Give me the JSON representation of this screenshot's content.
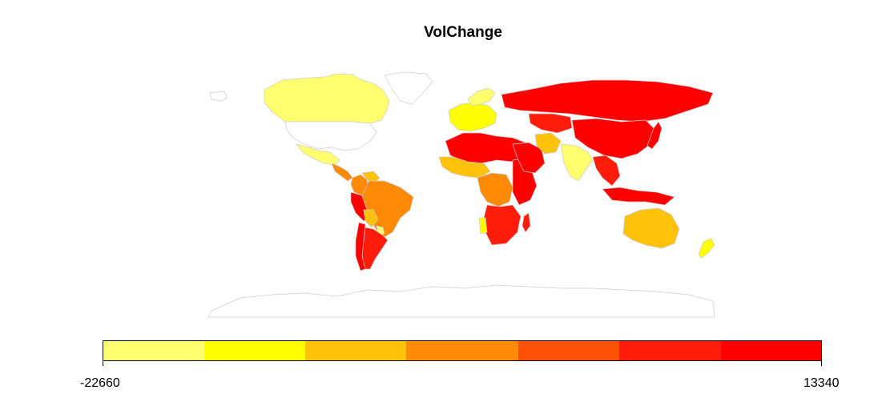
{
  "title": "VolChange",
  "legend": {
    "min_label": "-22660",
    "max_label": "13340",
    "colors": [
      "#FFFF70",
      "#FFFF00",
      "#FFC20A",
      "#FF8A05",
      "#FF5208",
      "#FF1C0A",
      "#FF0000"
    ]
  },
  "colors": {
    "no_data_fill": "#FFFFFF",
    "border": "#CCCCCC"
  },
  "regions": [
    {
      "name": "Alaska",
      "fill_level": -1
    },
    {
      "name": "Canada",
      "fill_level": 0
    },
    {
      "name": "Greenland",
      "fill_level": -1
    },
    {
      "name": "United States",
      "fill_level": -1
    },
    {
      "name": "Mexico",
      "fill_level": 0
    },
    {
      "name": "Central America",
      "fill_level": 3
    },
    {
      "name": "Colombia",
      "fill_level": 3
    },
    {
      "name": "Venezuela",
      "fill_level": 2
    },
    {
      "name": "Peru",
      "fill_level": 6
    },
    {
      "name": "Brazil",
      "fill_level": 3
    },
    {
      "name": "Bolivia",
      "fill_level": 2
    },
    {
      "name": "Paraguay",
      "fill_level": 0
    },
    {
      "name": "Argentina",
      "fill_level": 5
    },
    {
      "name": "Chile",
      "fill_level": 6
    },
    {
      "name": "Western Europe",
      "fill_level": 1
    },
    {
      "name": "Scandinavia",
      "fill_level": 0
    },
    {
      "name": "Russia",
      "fill_level": 6
    },
    {
      "name": "Kazakhstan",
      "fill_level": 5
    },
    {
      "name": "China",
      "fill_level": 6
    },
    {
      "name": "Japan",
      "fill_level": 6
    },
    {
      "name": "North Africa",
      "fill_level": 6
    },
    {
      "name": "West Africa",
      "fill_level": 2
    },
    {
      "name": "Central Africa",
      "fill_level": 3
    },
    {
      "name": "East Africa",
      "fill_level": 6
    },
    {
      "name": "Southern Africa",
      "fill_level": 5
    },
    {
      "name": "Namibia",
      "fill_level": 1
    },
    {
      "name": "Madagascar",
      "fill_level": 5
    },
    {
      "name": "Arabian Peninsula",
      "fill_level": 6
    },
    {
      "name": "Iran",
      "fill_level": 2
    },
    {
      "name": "India",
      "fill_level": 0
    },
    {
      "name": "Southeast Asia",
      "fill_level": 5
    },
    {
      "name": "Indonesia",
      "fill_level": 6
    },
    {
      "name": "Australia",
      "fill_level": 2
    },
    {
      "name": "New Zealand",
      "fill_level": 1
    },
    {
      "name": "Antarctica",
      "fill_level": -1
    }
  ]
}
